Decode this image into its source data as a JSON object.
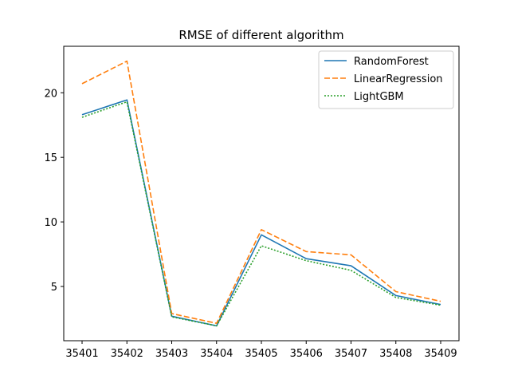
{
  "chart_data": {
    "type": "line",
    "title": "RMSE of different algorithm",
    "xlabel": "",
    "ylabel": "",
    "categories": [
      "35401",
      "35402",
      "35403",
      "35404",
      "35405",
      "35406",
      "35407",
      "35408",
      "35409"
    ],
    "ylim": [
      0.8,
      23.6
    ],
    "yticks": [
      5,
      10,
      15,
      20
    ],
    "legend_position": "top-right",
    "grid": false,
    "series": [
      {
        "name": "RandomForest",
        "color": "#1f77b4",
        "dash": "solid",
        "values": [
          18.3,
          19.45,
          2.7,
          1.95,
          9.0,
          7.15,
          6.6,
          4.3,
          3.6
        ]
      },
      {
        "name": "LinearRegression",
        "color": "#ff7f0e",
        "dash": "dashed",
        "values": [
          20.7,
          22.45,
          2.9,
          2.15,
          9.4,
          7.7,
          7.45,
          4.6,
          3.85
        ]
      },
      {
        "name": "LightGBM",
        "color": "#2ca02c",
        "dash": "dotted",
        "values": [
          18.1,
          19.3,
          2.65,
          1.95,
          8.15,
          7.0,
          6.25,
          4.15,
          3.55
        ]
      }
    ]
  }
}
